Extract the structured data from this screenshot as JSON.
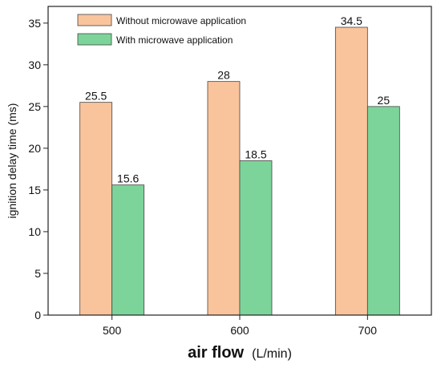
{
  "chart_data": {
    "type": "bar",
    "categories": [
      "500",
      "600",
      "700"
    ],
    "series": [
      {
        "name": "Without microwave application",
        "values": [
          25.5,
          28,
          34.5
        ],
        "labels": [
          "25.5",
          "28",
          "34.5"
        ],
        "color": "#f9c49c"
      },
      {
        "name": "With microwave application",
        "values": [
          15.6,
          18.5,
          25
        ],
        "labels": [
          "15.6",
          "18.5",
          "25"
        ],
        "color": "#7dd49a"
      }
    ],
    "title": "",
    "xlabel": "air flow",
    "xlabel_unit": "(L/min)",
    "ylabel": "ignition delay time (ms)",
    "ylim": [
      0,
      37
    ],
    "yticks": [
      0,
      5,
      10,
      15,
      20,
      25,
      30,
      35
    ],
    "ytick_labels": [
      "0",
      "5",
      "10",
      "15",
      "20",
      "25",
      "30",
      "35"
    ],
    "grid": false,
    "legend_position": "top-left"
  }
}
